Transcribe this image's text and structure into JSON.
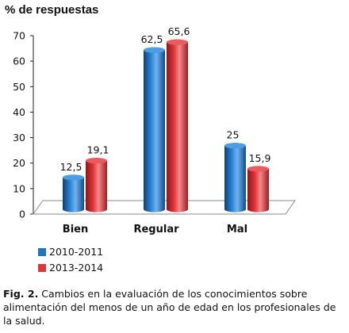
{
  "chart_data": {
    "type": "bar",
    "title": "",
    "ylabel": "% de respuestas",
    "xlabel": "",
    "ylim": [
      0,
      70
    ],
    "yticks": [
      0,
      10,
      20,
      30,
      40,
      50,
      60,
      70
    ],
    "categories": [
      "Bien",
      "Regular",
      "Mal"
    ],
    "series": [
      {
        "name": "2010-2011",
        "values": [
          12.5,
          62.5,
          25
        ],
        "labels": [
          "12,5",
          "62,5",
          "25"
        ],
        "color": "#1f74c2"
      },
      {
        "name": "2013-2014",
        "values": [
          19.1,
          65.6,
          15.9
        ],
        "labels": [
          "19,1",
          "65,6",
          "15,9"
        ],
        "color": "#e0353a"
      }
    ],
    "grid": false,
    "legend_position": "bottom-left"
  },
  "caption": {
    "label": "Fig. 2.",
    "text": " Cambios en la evaluación de los conocimientos sobre alimentación del menos de un año de edad en los profesionales de la salud."
  }
}
